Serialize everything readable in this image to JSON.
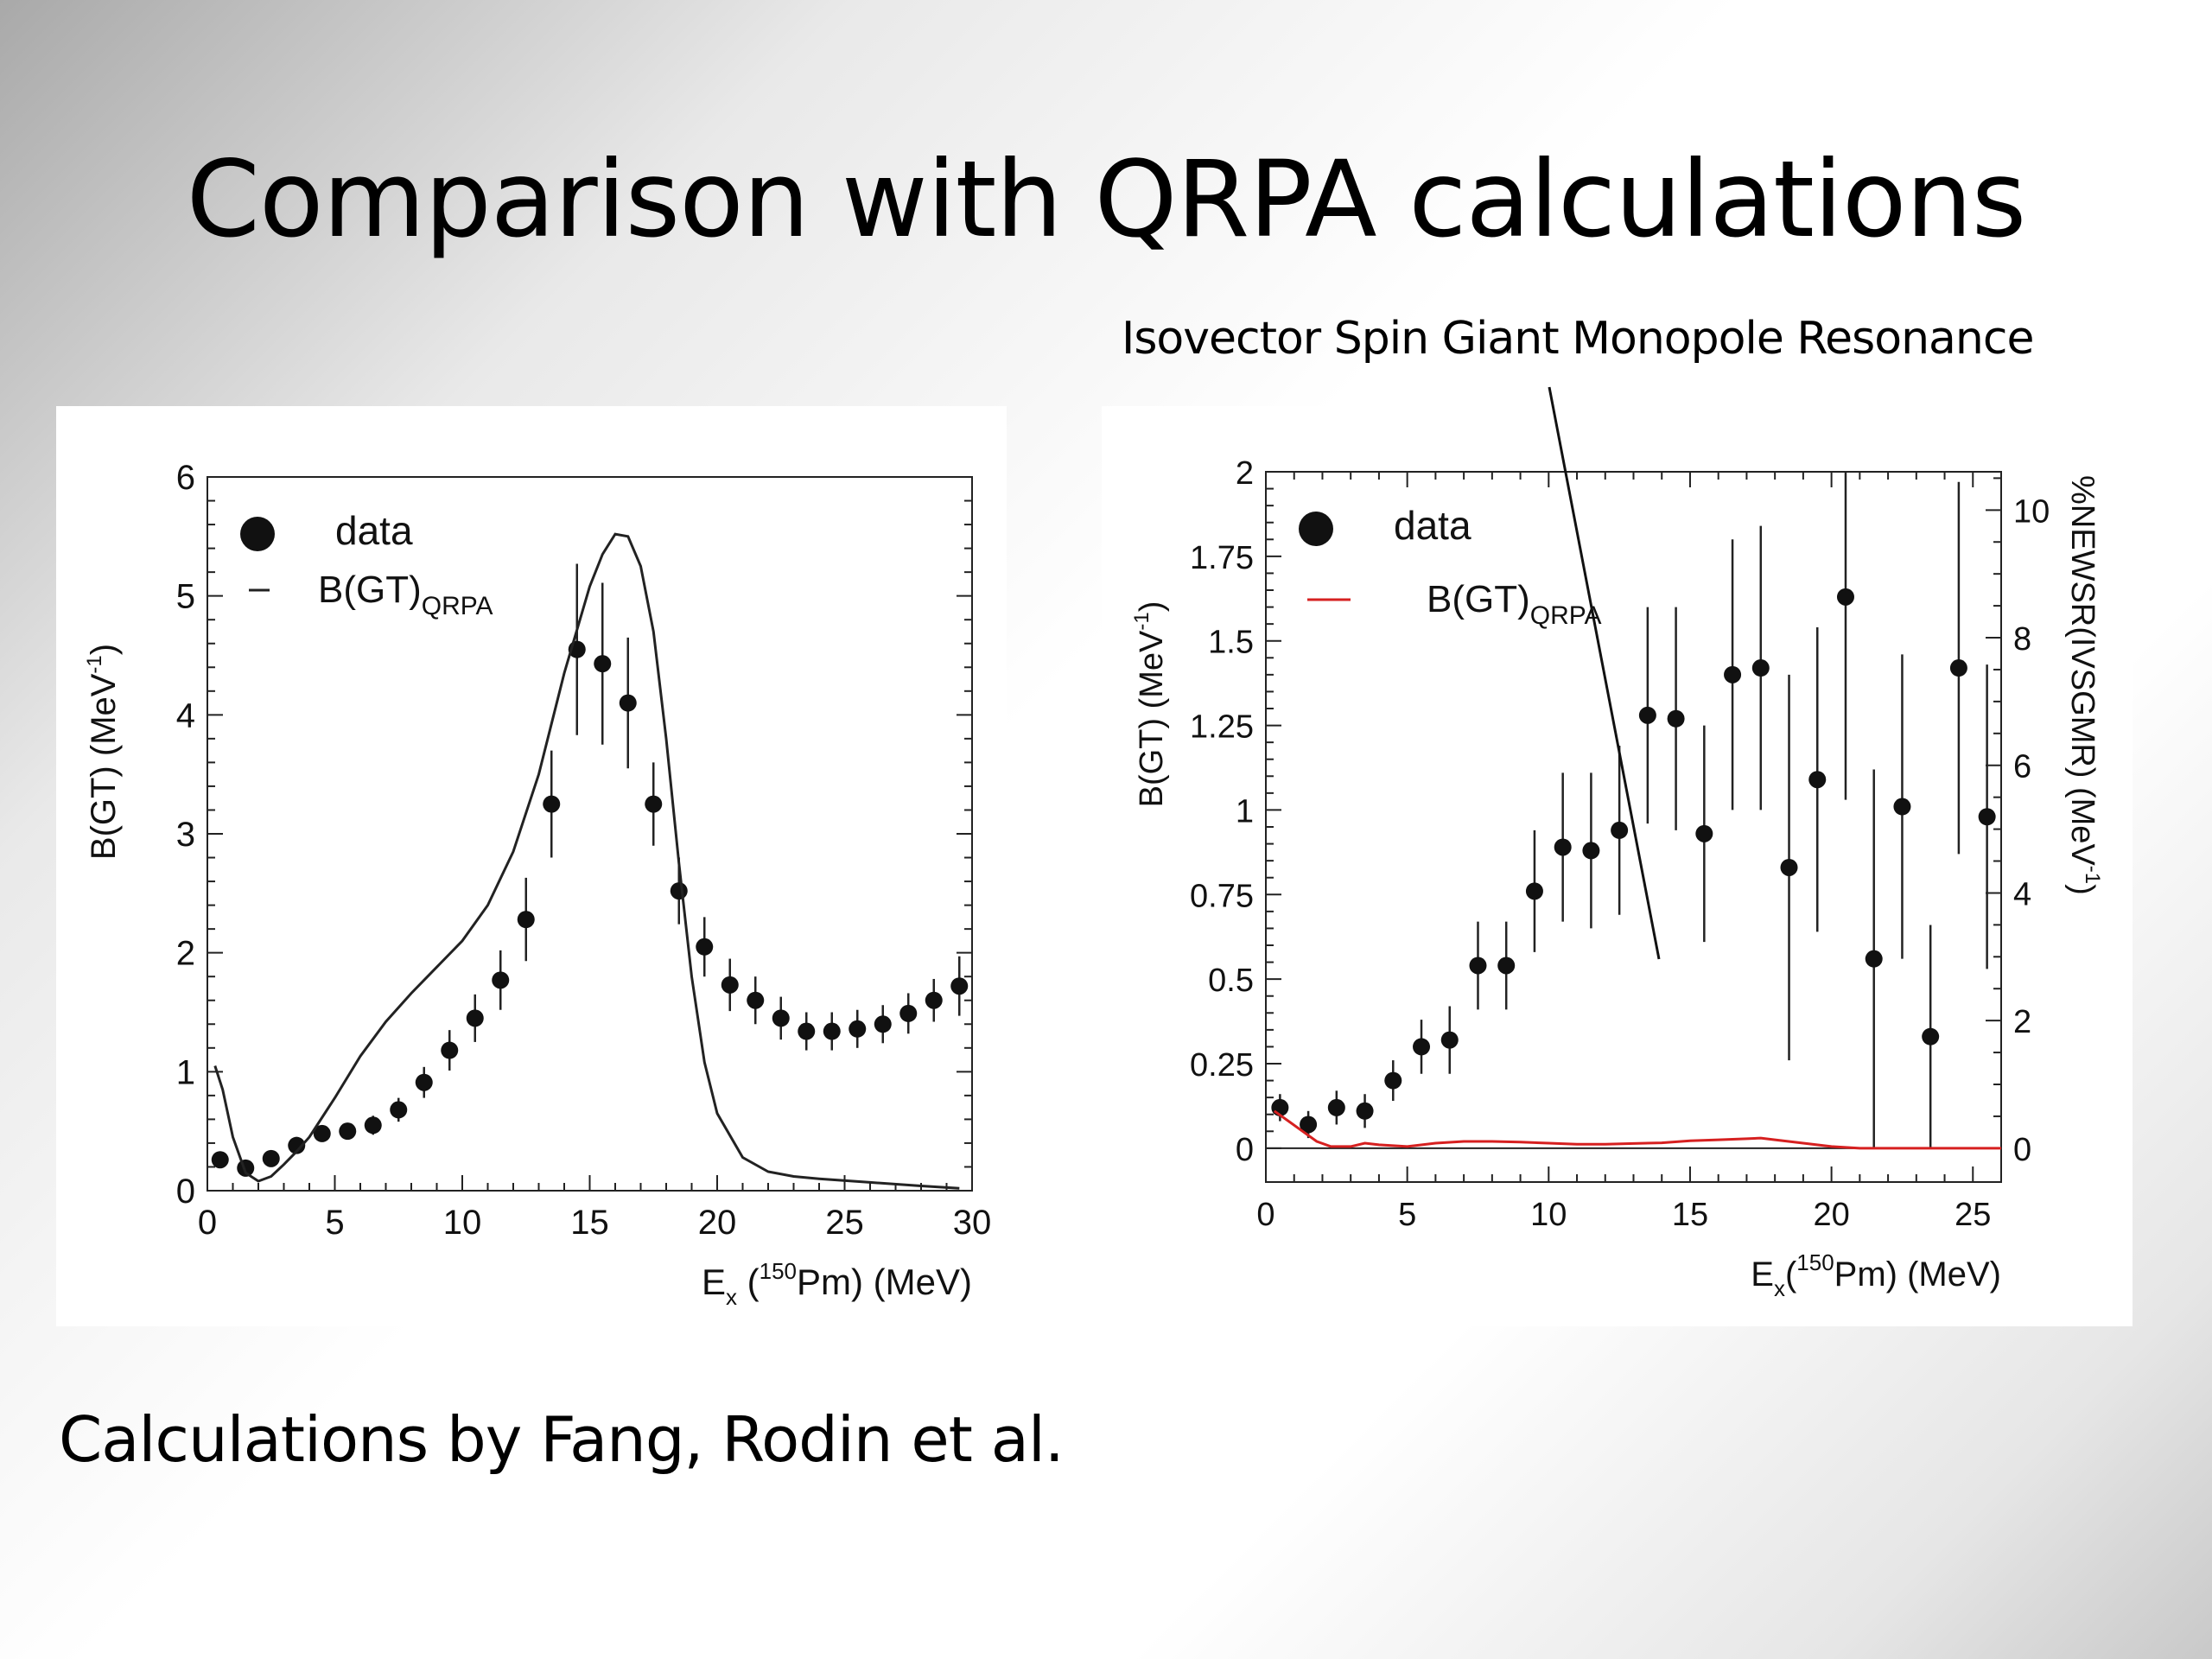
{
  "slide": {
    "title": "Comparison with QRPA calculations",
    "annotation": "Isovector Spin Giant Monopole Resonance",
    "footer": "Calculations by Fang, Rodin et al."
  },
  "chart_data": [
    {
      "type": "scatter",
      "xlabel": {
        "main": "E",
        "sub": "x",
        "open": " (",
        "sup": "150",
        "rest": "Pm) (MeV)"
      },
      "ylabel": {
        "main": "B(GT) (MeV",
        "sup": "-1",
        "close": ")"
      },
      "xlim": [
        0,
        30
      ],
      "ylim": [
        0,
        6
      ],
      "xticks": [
        0,
        5,
        10,
        15,
        20,
        25,
        30
      ],
      "yticks": [
        0,
        1,
        2,
        3,
        4,
        5,
        6
      ],
      "legend": {
        "position": "top-left",
        "entries": [
          {
            "label": "data",
            "marker": "dot"
          },
          {
            "label_main": "B(GT)",
            "label_sub": "QRPA",
            "marker": "line"
          }
        ]
      },
      "series": [
        {
          "kind": "points",
          "legend_entry": 0,
          "x": [
            0.5,
            1.5,
            2.5,
            3.5,
            4.5,
            5.5,
            6.5,
            7.5,
            8.5,
            9.5,
            10.5,
            11.5,
            12.5,
            13.5,
            14.5,
            15.5,
            16.5,
            17.5,
            18.5,
            19.5,
            20.5,
            21.5,
            22.5,
            23.5,
            24.5,
            25.5,
            26.5,
            27.5,
            28.5,
            29.5
          ],
          "y": [
            0.26,
            0.19,
            0.27,
            0.38,
            0.48,
            0.5,
            0.55,
            0.68,
            0.91,
            1.18,
            1.45,
            1.77,
            2.28,
            3.25,
            4.55,
            4.43,
            4.1,
            3.25,
            2.52,
            2.05,
            1.73,
            1.6,
            1.45,
            1.34,
            1.34,
            1.36,
            1.4,
            1.49,
            1.6,
            1.72
          ],
          "yerr": [
            0.05,
            0.05,
            0.06,
            0.06,
            0.07,
            0.07,
            0.08,
            0.1,
            0.13,
            0.17,
            0.2,
            0.25,
            0.35,
            0.45,
            0.72,
            0.68,
            0.55,
            0.35,
            0.28,
            0.25,
            0.22,
            0.2,
            0.18,
            0.16,
            0.16,
            0.16,
            0.16,
            0.17,
            0.18,
            0.25
          ]
        },
        {
          "kind": "line",
          "legend_entry": 1,
          "color": "#222222",
          "x": [
            0.3,
            0.6,
            1.0,
            1.5,
            2.0,
            2.5,
            3.0,
            3.5,
            4.0,
            5.0,
            6.0,
            7.0,
            8.0,
            9.0,
            10.0,
            11.0,
            12.0,
            13.0,
            14.0,
            15.0,
            15.5,
            16.0,
            16.5,
            17.0,
            17.5,
            18.0,
            18.5,
            19.0,
            19.5,
            20.0,
            21.0,
            22.0,
            23.0,
            24.0,
            26.0,
            28.0,
            29.5
          ],
          "y": [
            1.05,
            0.85,
            0.45,
            0.15,
            0.08,
            0.12,
            0.22,
            0.33,
            0.45,
            0.78,
            1.13,
            1.42,
            1.66,
            1.88,
            2.1,
            2.4,
            2.85,
            3.5,
            4.35,
            5.08,
            5.35,
            5.52,
            5.5,
            5.25,
            4.7,
            3.8,
            2.75,
            1.8,
            1.08,
            0.65,
            0.28,
            0.16,
            0.12,
            0.1,
            0.07,
            0.04,
            0.02
          ]
        }
      ]
    },
    {
      "type": "scatter",
      "xlabel": {
        "main": "E",
        "sub": "x",
        "open": "(",
        "sup": "150",
        "rest": "Pm) (MeV)"
      },
      "ylabel": {
        "main": "B(GT) (MeV",
        "sup": "-1",
        "close": ")"
      },
      "ylabel_right": {
        "main": "%NEWSR(IVSGMR) (MeV",
        "sup": "-1",
        "close": ")"
      },
      "xlim": [
        0,
        26
      ],
      "ylim": [
        -0.1,
        2
      ],
      "ylim_right": [
        0,
        10.6
      ],
      "xticks": [
        0,
        5,
        10,
        15,
        20,
        25
      ],
      "yticks": [
        "0",
        "0.25",
        "0.5",
        "0.75",
        "1",
        "1.25",
        "1.5",
        "1.75",
        "2"
      ],
      "yticks_right": [
        0,
        2,
        4,
        6,
        8,
        10
      ],
      "legend": {
        "position": "top-left",
        "entries": [
          {
            "label": "data",
            "marker": "dot"
          },
          {
            "label_main": "B(GT)",
            "label_sub": "QRPA",
            "marker": "line"
          }
        ]
      },
      "series": [
        {
          "kind": "points",
          "legend_entry": 0,
          "x": [
            0.5,
            1.5,
            2.5,
            3.5,
            4.5,
            5.5,
            6.5,
            7.5,
            8.5,
            9.5,
            10.5,
            11.5,
            12.5,
            13.5,
            14.5,
            15.5,
            16.5,
            17.5,
            18.5,
            19.5,
            20.5,
            21.5,
            22.5,
            23.5,
            24.5,
            25.5
          ],
          "y": [
            0.12,
            0.07,
            0.12,
            0.11,
            0.2,
            0.3,
            0.32,
            0.54,
            0.54,
            0.76,
            0.89,
            0.88,
            0.94,
            1.28,
            1.27,
            0.93,
            1.4,
            1.42,
            0.83,
            1.09,
            1.63,
            0.56,
            1.01,
            0.33,
            1.42,
            0.98
          ],
          "yerr": [
            0.04,
            0.04,
            0.05,
            0.05,
            0.06,
            0.08,
            0.1,
            0.13,
            0.13,
            0.18,
            0.22,
            0.23,
            0.25,
            0.32,
            0.33,
            0.32,
            0.4,
            0.42,
            0.57,
            0.45,
            0.6,
            0.56,
            0.45,
            0.33,
            0.55,
            0.45
          ]
        },
        {
          "kind": "line",
          "legend_entry": 1,
          "color": "#d62020",
          "x": [
            0.3,
            0.8,
            1.3,
            1.8,
            2.3,
            3.0,
            3.5,
            4.0,
            5.0,
            6.0,
            7.0,
            8.0,
            9.0,
            10.0,
            11.0,
            12.0,
            13.0,
            14.0,
            15.0,
            16.0,
            17.0,
            17.5,
            18.0,
            19.0,
            20.0,
            21.0,
            22.0,
            24.0,
            26.0
          ],
          "y": [
            0.11,
            0.08,
            0.05,
            0.02,
            0.005,
            0.005,
            0.015,
            0.01,
            0.005,
            0.015,
            0.02,
            0.02,
            0.018,
            0.015,
            0.012,
            0.012,
            0.014,
            0.016,
            0.022,
            0.025,
            0.028,
            0.03,
            0.025,
            0.015,
            0.005,
            0.0,
            0.0,
            0.0,
            0.0
          ]
        }
      ]
    }
  ]
}
